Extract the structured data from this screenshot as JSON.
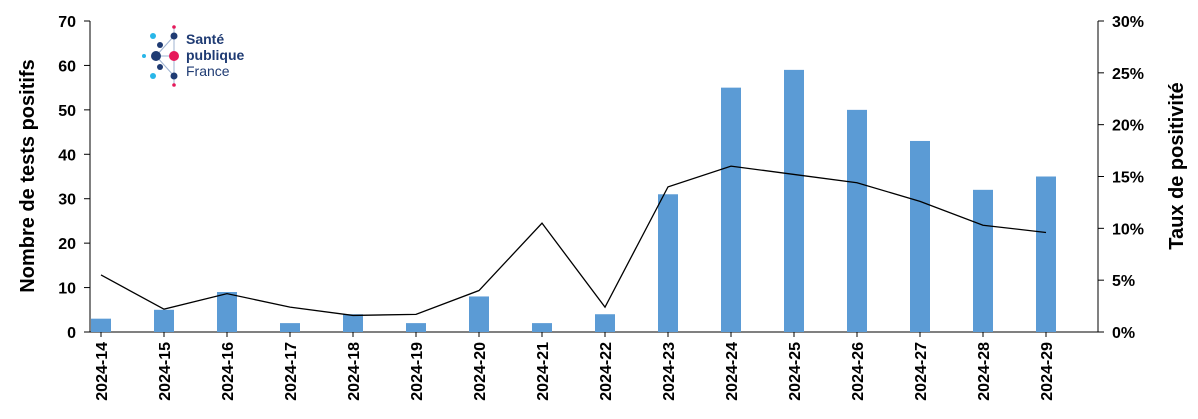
{
  "logo": {
    "line1": "Santé",
    "line2": "publique",
    "line3": "France",
    "colors": {
      "navy": "#1f3b73",
      "cyan": "#29b6e8",
      "magenta": "#e6195a"
    }
  },
  "chart_data": {
    "type": "bar",
    "categories": [
      "2024-14",
      "2024-15",
      "2024-16",
      "2024-17",
      "2024-18",
      "2024-19",
      "2024-20",
      "2024-21",
      "2024-22",
      "2024-23",
      "2024-24",
      "2024-25",
      "2024-26",
      "2024-27",
      "2024-28",
      "2024-29"
    ],
    "series": [
      {
        "type": "bar",
        "axis": "left",
        "color": "#5b9bd5",
        "values": [
          3,
          5,
          9,
          2,
          4,
          2,
          8,
          2,
          4,
          31,
          55,
          59,
          50,
          43,
          32,
          35
        ]
      },
      {
        "type": "line",
        "axis": "right",
        "color": "#000000",
        "values": [
          5.5,
          2.2,
          3.7,
          2.4,
          1.6,
          1.7,
          4.0,
          10.5,
          2.4,
          14.0,
          16.0,
          15.2,
          14.4,
          12.6,
          10.3,
          9.6
        ]
      }
    ],
    "ylabel": "Nombre de tests positifs",
    "y2label": "Taux de positivité",
    "ylim": [
      0,
      70
    ],
    "y2lim": [
      0,
      30
    ],
    "yticks": [
      "0",
      "10",
      "20",
      "30",
      "40",
      "50",
      "60",
      "70"
    ],
    "y2ticks": [
      "0%",
      "5%",
      "10%",
      "15%",
      "20%",
      "25%",
      "30%"
    ],
    "grid": false
  }
}
